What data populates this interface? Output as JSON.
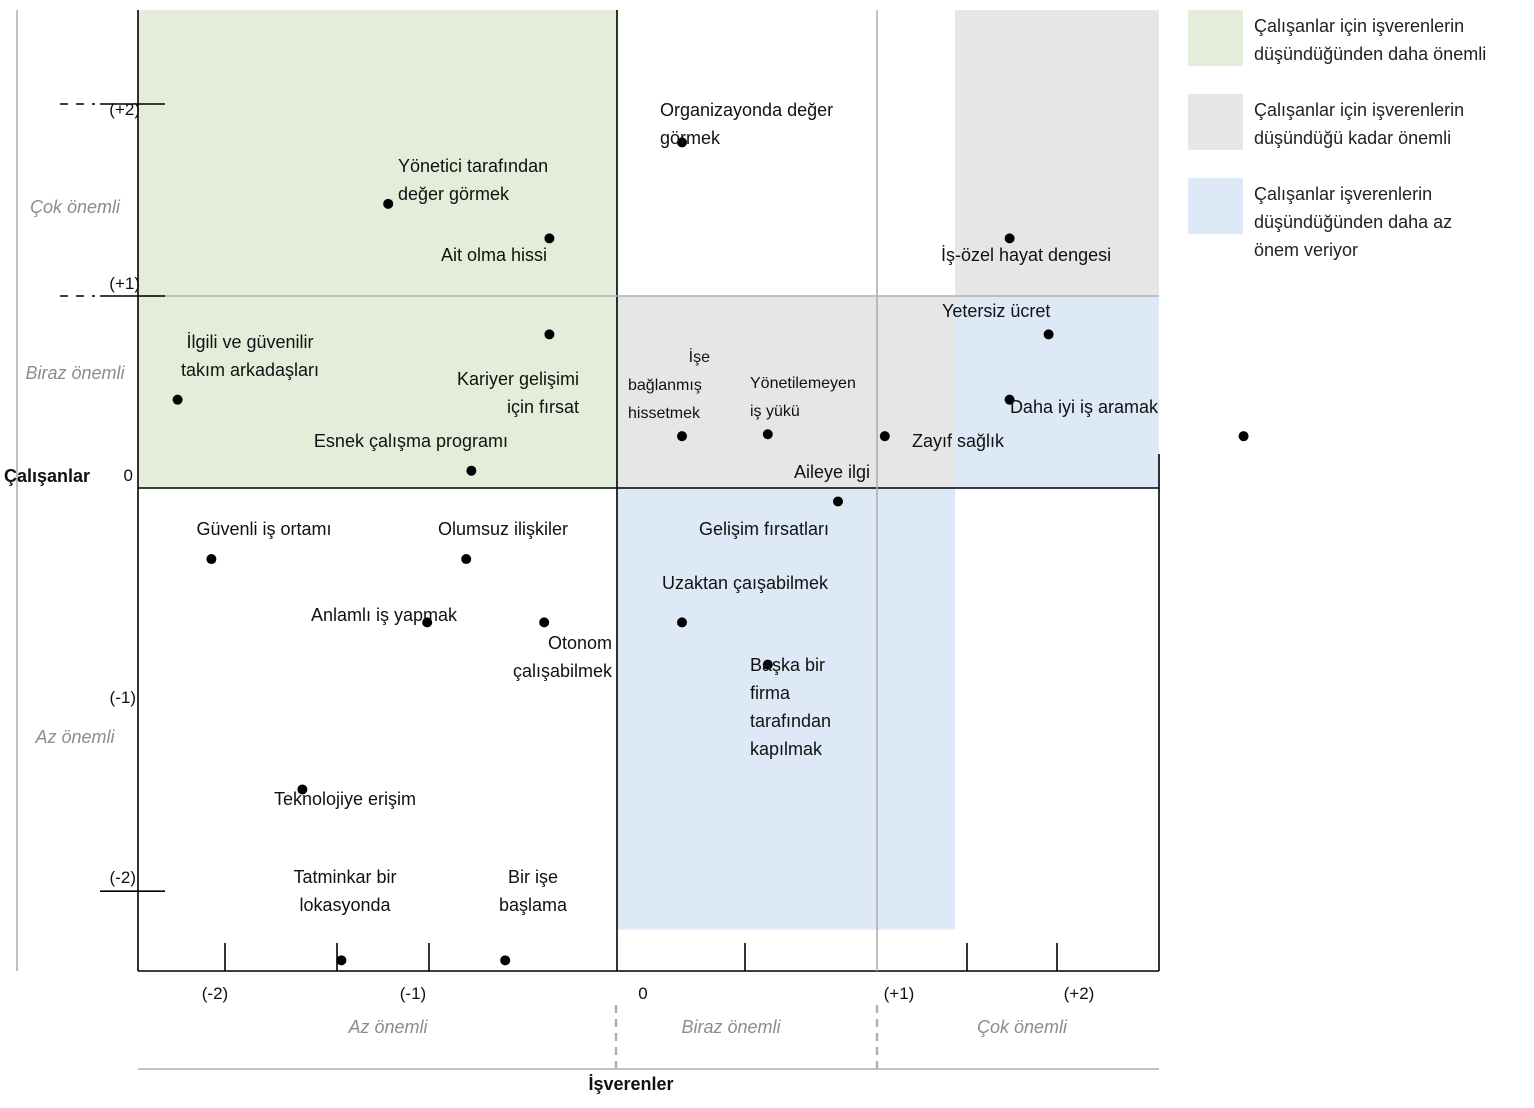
{
  "chart_data": {
    "type": "scatter",
    "title": "",
    "xlabel": "İşverenler",
    "ylabel": "Çalışanlar",
    "colors": {
      "green": "#e3edd9",
      "grey": "#e6e6e6",
      "blue": "#dde9f6",
      "point": "#000000"
    },
    "legend": {
      "placement": "top-right",
      "entries": [
        {
          "key": "green",
          "color": "#e3edd9",
          "lines": [
            "Çalışanlar için işverenlerin",
            "düşündüğünden daha önemli"
          ]
        },
        {
          "key": "grey",
          "color": "#e6e6e6",
          "lines": [
            "Çalışanlar için işverenlerin",
            "düşündüğü kadar önemli"
          ]
        },
        {
          "key": "blue",
          "color": "#dde9f6",
          "lines": [
            "Çalışanlar işverenlerin",
            "düşündüğünden daha az",
            "önem veriyor"
          ]
        }
      ]
    },
    "x_ticks": [
      "(-2)",
      "(-1)",
      "0",
      "(+1)",
      "(+2)"
    ],
    "y_ticks": [
      "(+2)",
      "(+1)",
      "0",
      "(-1)",
      "(-2)"
    ],
    "x_categories": [
      "Az önemli",
      "Biraz önemli",
      "Çok önemli"
    ],
    "y_categories": [
      "Çok önemli",
      "Biraz önemli",
      "Az önemli"
    ],
    "regions": [
      {
        "color": "green",
        "x": [
          -2.4,
          0
        ],
        "y": [
          0,
          2.6
        ]
      },
      {
        "color": "grey",
        "x": [
          0,
          1.3
        ],
        "y": [
          0,
          1
        ]
      },
      {
        "color": "grey",
        "x": [
          1.3,
          2.4
        ],
        "y": [
          1,
          2.6
        ]
      },
      {
        "color": "blue",
        "x": [
          0,
          1.3
        ],
        "y": [
          -2.3,
          0
        ]
      },
      {
        "color": "blue",
        "x": [
          1.3,
          2.4
        ],
        "y": [
          0,
          1
        ]
      }
    ],
    "points": [
      {
        "x": 0.25,
        "y": 1.8,
        "lines": [
          "Organizayonda  değer",
          "görmek"
        ]
      },
      {
        "x": -0.88,
        "y": 1.48,
        "lines": [
          "Yönetici tarafından",
          "değer görmek"
        ]
      },
      {
        "x": -0.26,
        "y": 1.3,
        "lines": [
          "Ait olma hissi"
        ]
      },
      {
        "x": 1.51,
        "y": 1.3,
        "lines": [
          "İş-özel hayat dengesi"
        ]
      },
      {
        "x": 1.66,
        "y": 0.8,
        "lines": [
          "Yetersiz ücret"
        ]
      },
      {
        "x": -1.69,
        "y": 0.46,
        "lines": [
          "İlgili ve güvenilir",
          "takım arkadaşları"
        ]
      },
      {
        "x": -0.26,
        "y": 0.8,
        "lines": [
          "Kariyer gelişimi",
          "için fırsat"
        ]
      },
      {
        "x": 0.25,
        "y": 0.27,
        "lines": [
          "İşe",
          "bağlanmış",
          "hissetmek"
        ]
      },
      {
        "x": 0.58,
        "y": 0.28,
        "lines": [
          "Yönetilemeyen",
          "iş yükü"
        ]
      },
      {
        "x": 1.03,
        "y": 0.27,
        "lines": [
          "Aileye ilgi"
        ]
      },
      {
        "x": 1.51,
        "y": 0.46,
        "lines": [
          "Zayıf sağlık"
        ]
      },
      {
        "x": 2.41,
        "y": 0.27,
        "lines": [
          "Daha iyi iş aramak"
        ]
      },
      {
        "x": -0.56,
        "y": 0.09,
        "lines": [
          "Esnek çalışma programı"
        ]
      },
      {
        "x": 0.85,
        "y": -0.07,
        "lines": [
          "Gelişim fırsatları"
        ]
      },
      {
        "x": -1.56,
        "y": -0.37,
        "lines": [
          "Güvenli iş ortamı"
        ]
      },
      {
        "x": -0.58,
        "y": -0.37,
        "lines": [
          "Olumsuz ilişkiler"
        ]
      },
      {
        "x": -0.73,
        "y": -0.7,
        "lines": [
          "Anlamlı iş yapmak"
        ]
      },
      {
        "x": -0.28,
        "y": -0.7,
        "lines": [
          "Otonom",
          "çalışabilmek"
        ]
      },
      {
        "x": 0.25,
        "y": -0.7,
        "lines": [
          "Uzaktan çaışabilmek"
        ]
      },
      {
        "x": 0.58,
        "y": -0.92,
        "lines": [
          "Başka bir",
          "firma",
          "tarafından",
          "kapılmak"
        ]
      },
      {
        "x": -1.21,
        "y": -1.57,
        "lines": [
          "Teknolojiye erişim"
        ]
      },
      {
        "x": -1.06,
        "y": -2.46,
        "lines": [
          "Tatminkar bir",
          "lokasyonda"
        ]
      },
      {
        "x": -0.43,
        "y": -2.46,
        "lines": [
          "Bir işe",
          "başlama"
        ]
      }
    ]
  }
}
